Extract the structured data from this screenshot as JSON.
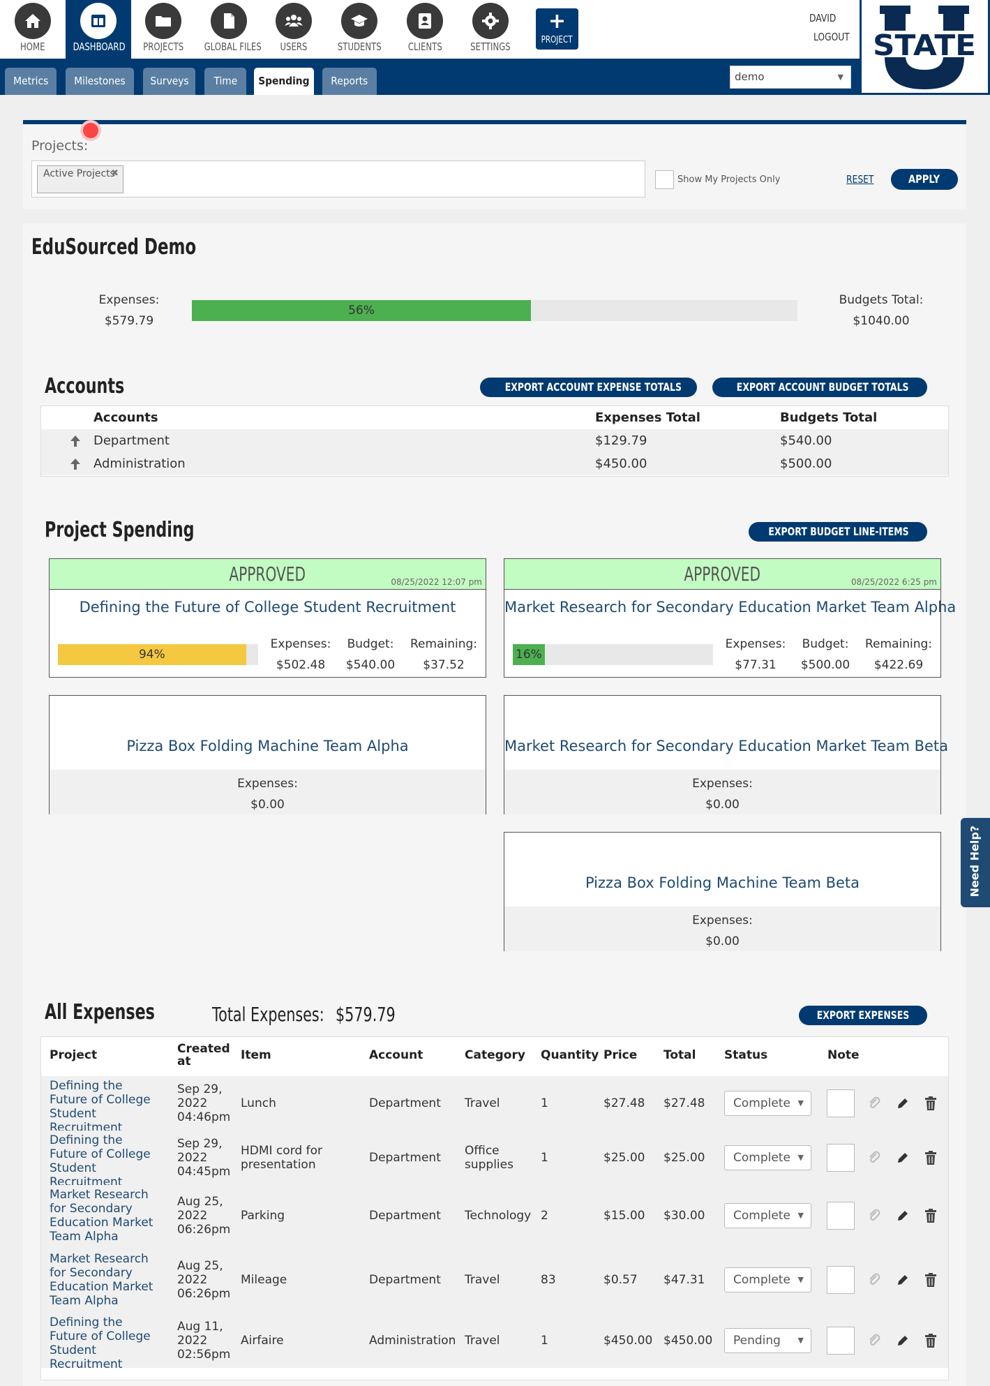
{
  "nav": {
    "items": [
      {
        "label": "HOME",
        "icon": "home-icon"
      },
      {
        "label": "DASHBOARD",
        "icon": "dashboard-icon"
      },
      {
        "label": "PROJECTS",
        "icon": "folder-icon"
      },
      {
        "label": "GLOBAL FILES",
        "icon": "file-icon"
      },
      {
        "label": "USERS",
        "icon": "users-icon"
      },
      {
        "label": "STUDENTS",
        "icon": "graduation-cap-icon"
      },
      {
        "label": "CLIENTS",
        "icon": "contact-card-icon"
      },
      {
        "label": "SETTINGS",
        "icon": "gear-icon"
      }
    ],
    "active": "DASHBOARD",
    "add_project_plus": "+",
    "add_project_label": "PROJECT",
    "user_name": "DAVID",
    "logout": "LOGOUT"
  },
  "logo": {
    "text_top": "STATE",
    "letter": "U"
  },
  "tabs": [
    "Metrics",
    "Milestones",
    "Surveys",
    "Time",
    "Spending",
    "Reports"
  ],
  "active_tab": "Spending",
  "org_select": {
    "value": "demo",
    "arrow": "▼"
  },
  "filter": {
    "projects_label": "Projects:",
    "chip_label": "Active Projects",
    "chip_remove": "✖",
    "show_mine_label": "Show My Projects Only",
    "reset": "RESET",
    "apply": "APPLY"
  },
  "summary": {
    "title": "EduSourced Demo",
    "expenses_label": "Expenses:",
    "expenses_value": "$579.79",
    "percent_label": "56%",
    "percent": 56,
    "budgets_label": "Budgets Total:",
    "budgets_value": "$1040.00"
  },
  "accounts": {
    "heading": "Accounts",
    "export_expense_btn": "EXPORT ACCOUNT EXPENSE TOTALS",
    "export_budget_btn": "EXPORT ACCOUNT BUDGET TOTALS",
    "columns": [
      "Accounts",
      "Expenses Total",
      "Budgets Total"
    ],
    "rows": [
      {
        "name": "Department",
        "expenses": "$129.79",
        "budgets": "$540.00"
      },
      {
        "name": "Administration",
        "expenses": "$450.00",
        "budgets": "$500.00"
      }
    ]
  },
  "project_spending": {
    "heading": "Project Spending",
    "export_btn": "EXPORT BUDGET LINE-ITEMS",
    "cards": [
      {
        "status": "APPROVED",
        "date": "08/25/2022 12:07 pm",
        "title": "Defining the Future of College Student Recruitment",
        "percent_label": "94%",
        "percent": 94,
        "bar_color": "#f5c842",
        "expenses_label": "Expenses:",
        "expenses": "$502.48",
        "budget_label": "Budget:",
        "budget": "$540.00",
        "remaining_label": "Remaining:",
        "remaining": "$37.52"
      },
      {
        "status": "APPROVED",
        "date": "08/25/2022 6:25 pm",
        "title": "Market Research for Secondary Education Market Team Alpha",
        "percent_label": "16%",
        "percent": 16,
        "bar_color": "#4caf50",
        "expenses_label": "Expenses:",
        "expenses": "$77.31",
        "budget_label": "Budget:",
        "budget": "$500.00",
        "remaining_label": "Remaining:",
        "remaining": "$422.69"
      },
      {
        "title": "Pizza Box Folding Machine Team Alpha",
        "expenses_label": "Expenses:",
        "expenses": "$0.00"
      },
      {
        "title": "Market Research for Secondary Education Market Team Beta",
        "expenses_label": "Expenses:",
        "expenses": "$0.00"
      },
      {
        "title": "Pizza Box Folding Machine Team Beta",
        "expenses_label": "Expenses:",
        "expenses": "$0.00"
      }
    ]
  },
  "all_expenses": {
    "heading": "All Expenses",
    "total_label": "Total Expenses:",
    "total_value": "$579.79",
    "export_btn": "EXPORT EXPENSES",
    "columns": [
      "Project",
      "Created at",
      "Item",
      "Account",
      "Category",
      "Quantity",
      "Price",
      "Total",
      "Status",
      "Note"
    ],
    "rows": [
      {
        "project": "Defining the Future of College Student Recruitment",
        "created": "Sep 29, 2022 04:46pm",
        "item": "Lunch",
        "account": "Department",
        "category": "Travel",
        "quantity": "1",
        "price": "$27.48",
        "total": "$27.48",
        "status": "Complete"
      },
      {
        "project": "Defining the Future of College Student Recruitment",
        "created": "Sep 29, 2022 04:45pm",
        "item": "HDMI cord for presentation",
        "account": "Department",
        "category": "Office supplies",
        "quantity": "1",
        "price": "$25.00",
        "total": "$25.00",
        "status": "Complete"
      },
      {
        "project": "Market Research for Secondary Education Market Team Alpha",
        "created": "Aug 25, 2022 06:26pm",
        "item": "Parking",
        "account": "Department",
        "category": "Technology",
        "quantity": "2",
        "price": "$15.00",
        "total": "$30.00",
        "status": "Complete"
      },
      {
        "project": "Market Research for Secondary Education Market Team Alpha",
        "created": "Aug 25, 2022 06:26pm",
        "item": "Mileage",
        "account": "Department",
        "category": "Travel",
        "quantity": "83",
        "price": "$0.57",
        "total": "$47.31",
        "status": "Complete"
      },
      {
        "project": "Defining the Future of College Student Recruitment",
        "created": "Aug 11, 2022 02:56pm",
        "item": "Airfaire",
        "account": "Administration",
        "category": "Travel",
        "quantity": "1",
        "price": "$450.00",
        "total": "$450.00",
        "status": "Pending"
      }
    ]
  },
  "need_help": "Need Help?"
}
